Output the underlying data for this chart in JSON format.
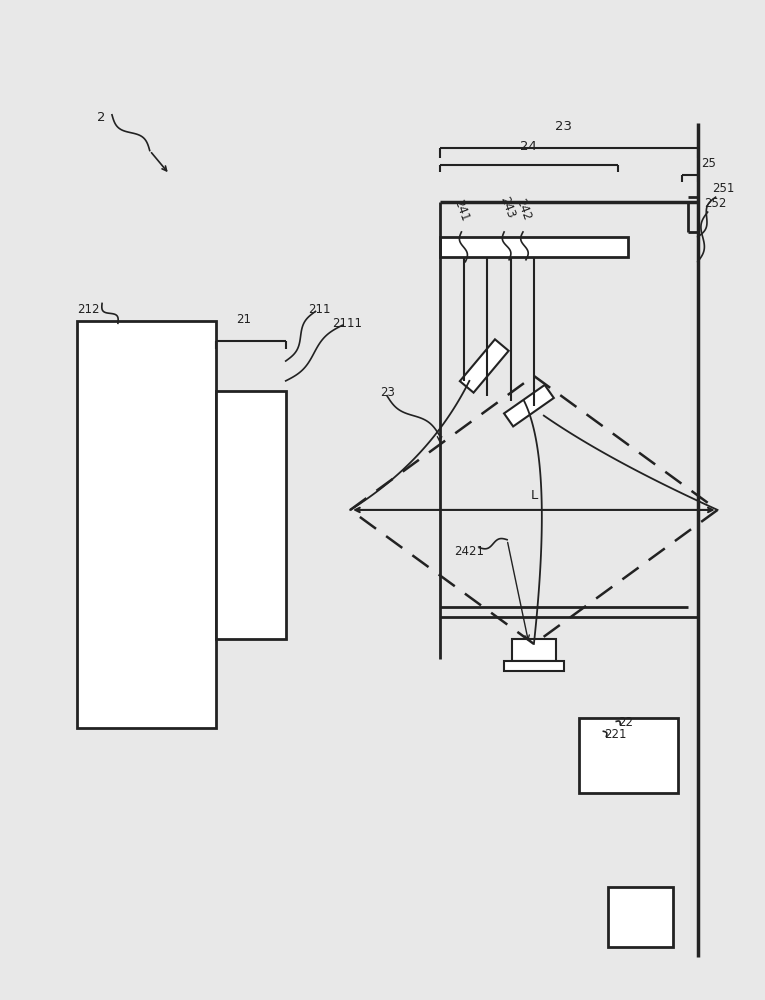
{
  "bg_color": "#e8e8e8",
  "line_color": "#222222",
  "font_size": 8.5,
  "fig_w": 7.65,
  "fig_h": 10.0,
  "dpi": 100
}
